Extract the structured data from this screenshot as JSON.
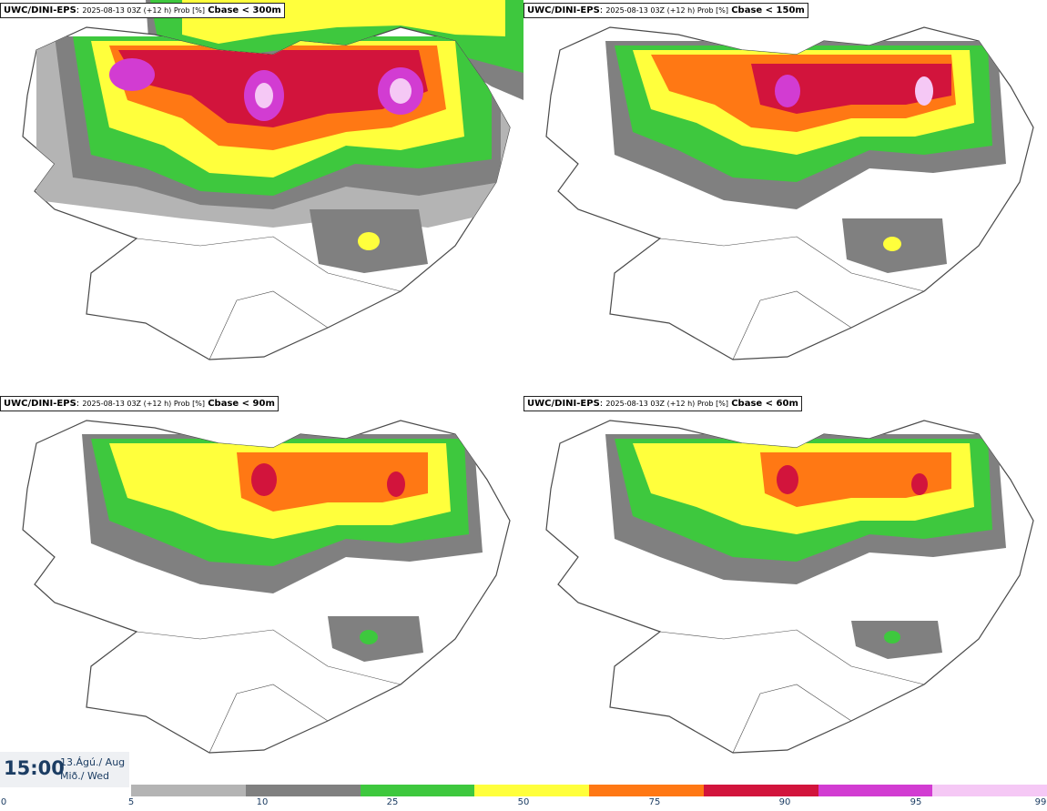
{
  "panels": [
    {
      "model": "UWC/DINI-EPS",
      "run": "2025-08-13 03Z (+12 h) Prob [%]",
      "param": "Cbase < 300m"
    },
    {
      "model": "UWC/DINI-EPS",
      "run": "2025-08-13 03Z (+12 h) Prob [%]",
      "param": "Cbase < 150m"
    },
    {
      "model": "UWC/DINI-EPS",
      "run": "2025-08-13 03Z (+12 h) Prob [%]",
      "param": "Cbase < 90m"
    },
    {
      "model": "UWC/DINI-EPS",
      "run": "2025-08-13 03Z (+12 h) Prob [%]",
      "param": "Cbase < 60m"
    }
  ],
  "valid_time": {
    "clock": "15:00",
    "date": "13.Ágú./ Aug",
    "weekday": "Mið./ Wed"
  },
  "legend": {
    "ticks": [
      "0",
      "5",
      "10",
      "25",
      "50",
      "75",
      "90",
      "95",
      "99"
    ],
    "colors": [
      "#b4b4b4",
      "#808080",
      "#3ec83e",
      "#ffff3c",
      "#ff7814",
      "#d2143c",
      "#d23cd2",
      "#f5c8f5"
    ]
  },
  "map_colors": {
    "coast": "#4a4a4a",
    "bin5": "#b4b4b4",
    "bin10": "#808080",
    "bin25": "#3ec83e",
    "bin50": "#ffff3c",
    "bin75": "#ff7814",
    "bin90": "#d2143c",
    "bin95": "#d23cd2"
  }
}
